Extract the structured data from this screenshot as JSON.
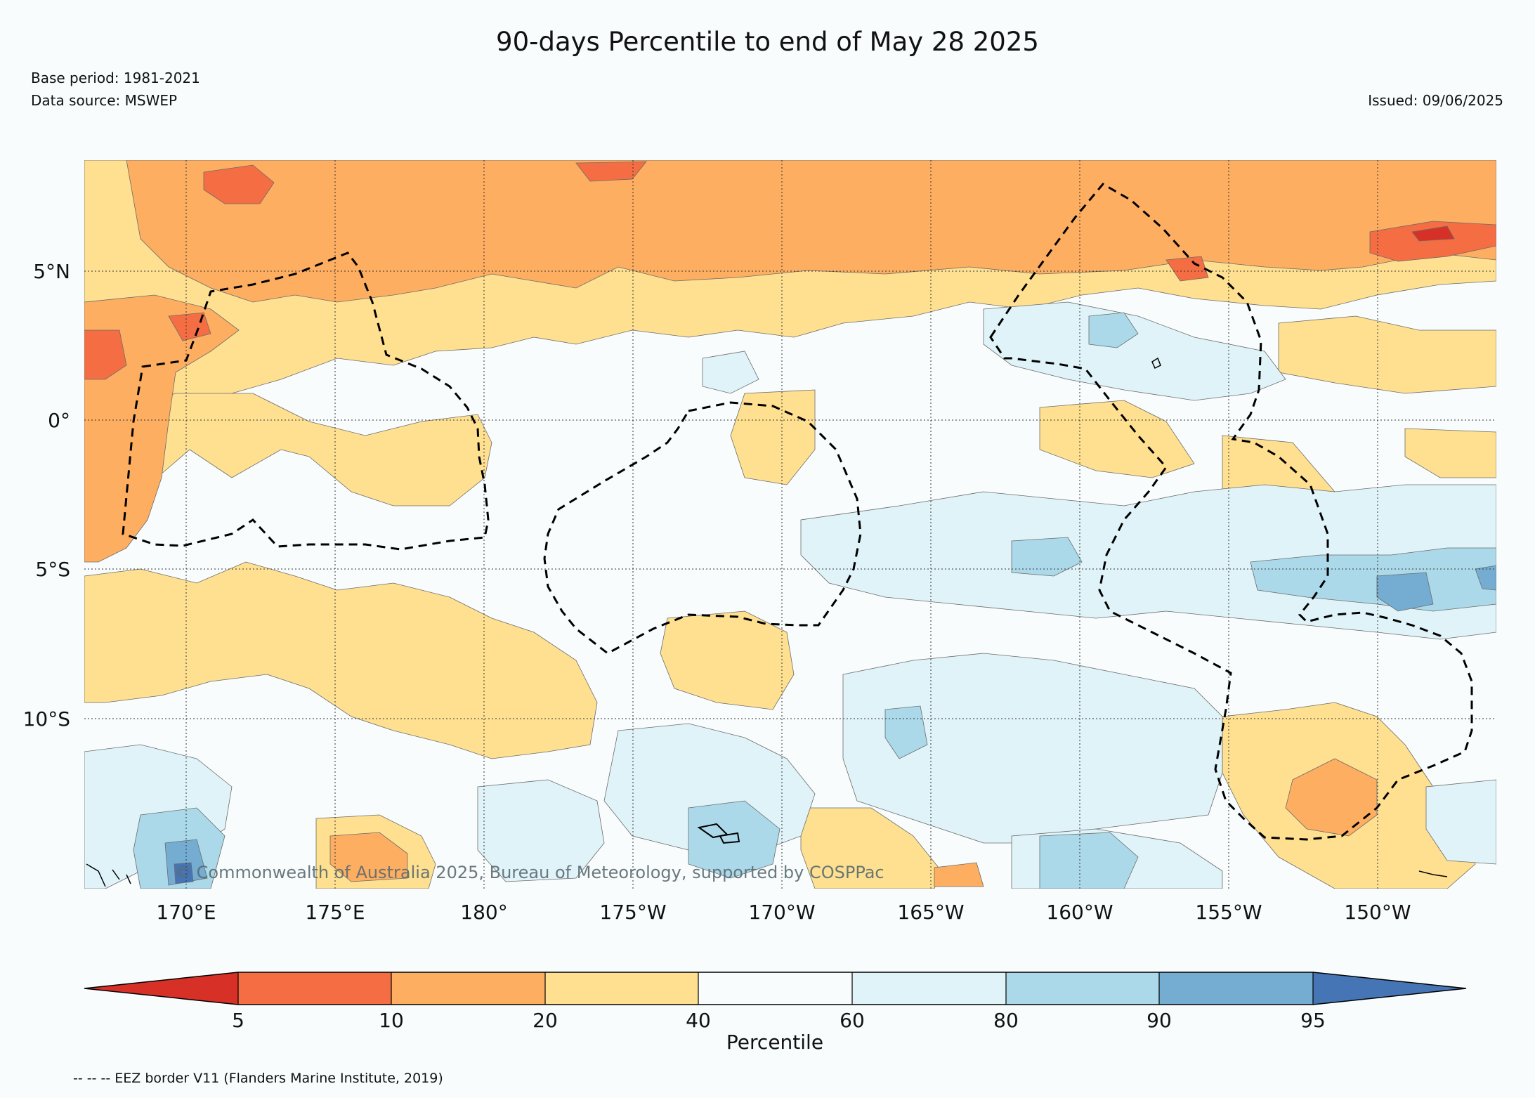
{
  "header": {
    "title": "90-days Percentile to end of May 28 2025",
    "base_period": "Base period: 1981-2021",
    "data_source": "Data source: MSWEP",
    "issued": "Issued: 09/06/2025"
  },
  "map": {
    "lat_labels": [
      "5°N",
      "0°",
      "5°S",
      "10°S"
    ],
    "lon_labels": [
      "170°E",
      "175°E",
      "180°",
      "175°W",
      "170°W",
      "165°W",
      "160°W",
      "155°W",
      "150°W"
    ],
    "credit": "© Commonwealth of Australia 2025, Bureau of Meteorology, supported by COSPPac",
    "lat_range": [
      -15.5,
      8.9
    ],
    "lon_range": [
      166.8,
      213.7
    ]
  },
  "colorbar": {
    "label": "Percentile",
    "ticks": [
      "5",
      "10",
      "20",
      "40",
      "60",
      "80",
      "90",
      "95"
    ],
    "colors": {
      "below_5": "#d73027",
      "5_10": "#f46d43",
      "10_20": "#fdae61",
      "20_40": "#fee090",
      "40_60": "#f8fcfd",
      "60_80": "#e0f3f8",
      "80_90": "#abd9e9",
      "90_95": "#74add1",
      "above_95": "#4575b4"
    }
  },
  "footer": {
    "eez_note": "-- -- -- EEZ border V11 (Flanders Marine Institute, 2019)"
  }
}
